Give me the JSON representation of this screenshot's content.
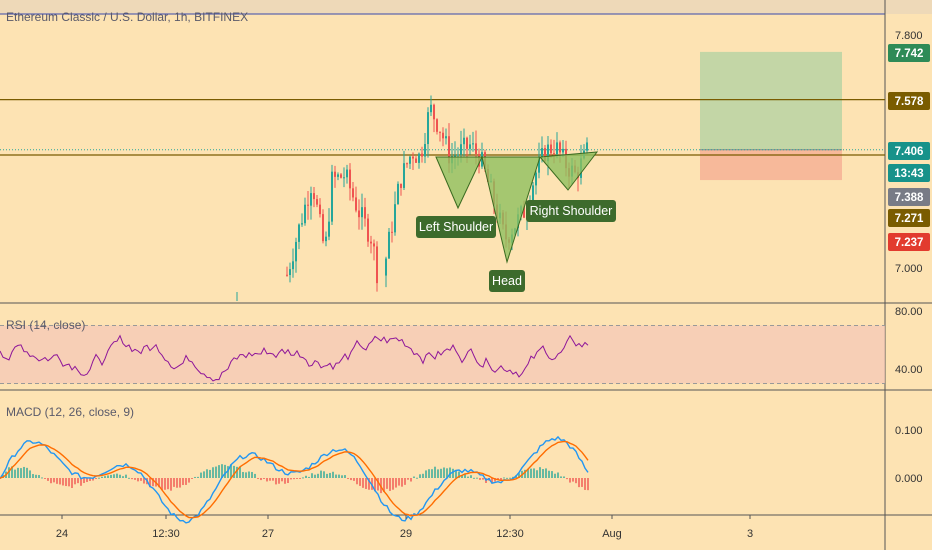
{
  "header": {
    "title": "Ethereum Classic / U.S. Dollar, 1h, BITFINEX"
  },
  "panes": {
    "rsi_label": "RSI (14, close)",
    "macd_label": "MACD (12, 26, close, 9)"
  },
  "price_axis": {
    "ticks": [
      "7.800",
      "7.000"
    ],
    "tags": [
      {
        "text": "7.742",
        "bg": "#2e8b57",
        "fg": "#ffffff"
      },
      {
        "text": "7.578",
        "bg": "#7a5c00",
        "fg": "#ffffff"
      },
      {
        "text": "7.406",
        "bg": "#17928a",
        "fg": "#ffffff"
      },
      {
        "text": "13:43",
        "bg": "#17928a",
        "fg": "#ffffff"
      },
      {
        "text": "7.388",
        "bg": "#787b86",
        "fg": "#ffffff"
      },
      {
        "text": "7.271",
        "bg": "#7a5c00",
        "fg": "#ffffff"
      },
      {
        "text": "7.237",
        "bg": "#e23b2e",
        "fg": "#ffffff"
      }
    ]
  },
  "rsi_axis": {
    "ticks": [
      "80.00",
      "40.00"
    ]
  },
  "macd_axis": {
    "ticks": [
      "0.100",
      "0.000"
    ]
  },
  "time_axis": {
    "ticks": [
      "24",
      "12:30",
      "27",
      "29",
      "12:30",
      "Aug",
      "3"
    ]
  },
  "pattern_labels": {
    "left": "Left Shoulder",
    "head": "Head",
    "right": "Right Shoulder"
  },
  "colors": {
    "background": "#fde3b3",
    "up": "#26a69a",
    "down": "#ef5350",
    "level_line": "#7a5c00",
    "rsi_line": "#8e1599",
    "rsi_band": "#f4c6b8",
    "macd_line": "#2196f3",
    "signal_line": "#ff6d00",
    "pattern_fill": "#8fbf5f",
    "target_zone": "#c3d6a6",
    "stop_zone": "#f7b99a"
  },
  "chart_data": {
    "type": "candlestick",
    "symbol": "Ethereum Classic / U.S. Dollar",
    "interval": "1h",
    "exchange": "BITFINEX",
    "levels": {
      "horizontal_lines": [
        7.578,
        7.388
      ],
      "current_price": 7.406,
      "target_top": 7.742,
      "entry": 7.406,
      "stop": 7.271
    },
    "rsi": {
      "period": 14,
      "upper": 70,
      "lower": 30
    },
    "macd": {
      "fast": 12,
      "slow": 26,
      "signal": 9
    }
  }
}
